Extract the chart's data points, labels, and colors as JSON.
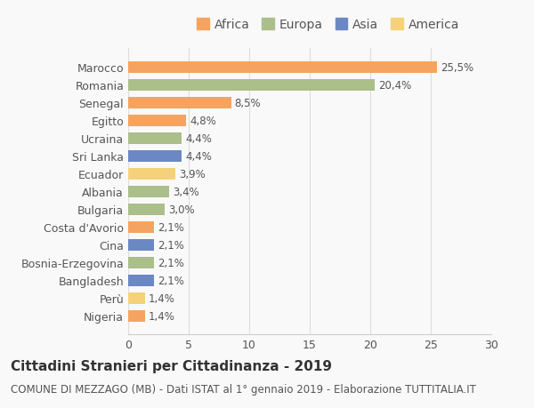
{
  "countries": [
    "Nigeria",
    "Perù",
    "Bangladesh",
    "Bosnia-Erzegovina",
    "Cina",
    "Costa d'Avorio",
    "Bulgaria",
    "Albania",
    "Ecuador",
    "Sri Lanka",
    "Ucraina",
    "Egitto",
    "Senegal",
    "Romania",
    "Marocco"
  ],
  "values": [
    1.4,
    1.4,
    2.1,
    2.1,
    2.1,
    2.1,
    3.0,
    3.4,
    3.9,
    4.4,
    4.4,
    4.8,
    8.5,
    20.4,
    25.5
  ],
  "continents": [
    "Africa",
    "America",
    "Asia",
    "Europa",
    "Asia",
    "Africa",
    "Europa",
    "Europa",
    "America",
    "Asia",
    "Europa",
    "Africa",
    "Africa",
    "Europa",
    "Africa"
  ],
  "colors": {
    "Africa": "#F4A460",
    "Europa": "#AABF8A",
    "Asia": "#6B87C4",
    "America": "#F5D27A"
  },
  "legend_items": [
    "Africa",
    "Europa",
    "Asia",
    "America"
  ],
  "legend_colors": [
    "#F4A460",
    "#AABF8A",
    "#6B87C4",
    "#F5D27A"
  ],
  "labels": [
    "1,4%",
    "1,4%",
    "2,1%",
    "2,1%",
    "2,1%",
    "2,1%",
    "3,0%",
    "3,4%",
    "3,9%",
    "4,4%",
    "4,4%",
    "4,8%",
    "8,5%",
    "20,4%",
    "25,5%"
  ],
  "xlim": [
    0,
    30
  ],
  "xticks": [
    0,
    5,
    10,
    15,
    20,
    25,
    30
  ],
  "title": "Cittadini Stranieri per Cittadinanza - 2019",
  "subtitle": "COMUNE DI MEZZAGO (MB) - Dati ISTAT al 1° gennaio 2019 - Elaborazione TUTTITALIA.IT",
  "bg_color": "#f9f9f9",
  "bar_height": 0.65,
  "title_fontsize": 11,
  "subtitle_fontsize": 8.5,
  "label_fontsize": 8.5,
  "ytick_fontsize": 9,
  "xtick_fontsize": 9,
  "legend_fontsize": 10
}
